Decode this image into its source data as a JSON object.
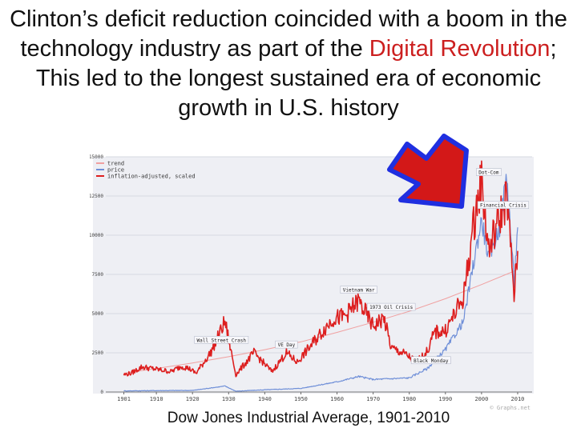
{
  "slide": {
    "title_part1": "Clinton’s deficit reduction coincided with a boom in the technology industry as part of the ",
    "title_highlight": "Digital Revolution",
    "title_part2": "; This led to the longest sustained era of economic growth in U.S. history",
    "caption": "Dow Jones Industrial Average, 1901-2010",
    "accent_color": "#cc1f1f"
  },
  "chart_data": {
    "type": "line",
    "title": "",
    "xlabel": "",
    "ylabel": "",
    "xlim": [
      1896,
      2014
    ],
    "ylim": [
      0,
      15000
    ],
    "x_ticks": [
      "1901",
      "1910",
      "1920",
      "1930",
      "1940",
      "1950",
      "1960",
      "1970",
      "1980",
      "1990",
      "2000",
      "2010"
    ],
    "x_tick_years": [
      1901,
      1910,
      1920,
      1930,
      1940,
      1950,
      1960,
      1970,
      1980,
      1990,
      2000,
      2010
    ],
    "y_ticks": [
      "0",
      "2500",
      "5000",
      "7500",
      "10000",
      "12500",
      "15000"
    ],
    "y_tick_values": [
      0,
      2500,
      5000,
      7500,
      10000,
      12500,
      15000
    ],
    "legend": [
      "trend",
      "price",
      "inflation-adjusted, scaled"
    ],
    "series": [
      {
        "name": "trend",
        "color": "#f0a0a0",
        "x": [
          1901,
          1910,
          1920,
          1930,
          1940,
          1950,
          1960,
          1970,
          1980,
          1990,
          2000,
          2010
        ],
        "values": [
          1200,
          1500,
          1850,
          2250,
          2700,
          3200,
          3800,
          4450,
          5150,
          5950,
          6850,
          7800
        ]
      },
      {
        "name": "price",
        "color": "#6f8fd8",
        "x": [
          1901,
          1910,
          1920,
          1929,
          1932,
          1940,
          1950,
          1960,
          1966,
          1970,
          1975,
          1980,
          1985,
          1987,
          1990,
          1995,
          1998,
          2000,
          2002,
          2005,
          2007,
          2009,
          2010
        ],
        "values": [
          70,
          90,
          100,
          380,
          50,
          140,
          230,
          650,
          990,
          800,
          850,
          900,
          1500,
          2000,
          2700,
          4500,
          8500,
          11000,
          8500,
          10500,
          13900,
          7000,
          10500
        ]
      },
      {
        "name": "inflation-adjusted, scaled",
        "color": "#dd1f1f",
        "x": [
          1901,
          1903,
          1906,
          1910,
          1914,
          1917,
          1919,
          1921,
          1925,
          1929,
          1932,
          1937,
          1942,
          1946,
          1949,
          1955,
          1959,
          1962,
          1966,
          1970,
          1973,
          1975,
          1979,
          1982,
          1985,
          1987,
          1990,
          1995,
          1998,
          2000,
          2002,
          2004,
          2007,
          2009,
          2010
        ],
        "values": [
          1100,
          1200,
          1600,
          1450,
          1300,
          1650,
          1500,
          1200,
          2500,
          4500,
          1100,
          2500,
          1300,
          2500,
          1900,
          3600,
          4700,
          4800,
          5800,
          4200,
          4700,
          2800,
          2400,
          1900,
          2600,
          3800,
          3900,
          6000,
          11000,
          13500,
          9000,
          10500,
          12500,
          6200,
          9000
        ]
      }
    ],
    "annotations": [
      "Dot-Com",
      "Financial Crisis",
      "Vietnam War",
      "1973 Oil Crisis",
      "Wall Street Crash",
      "VE Day",
      "Black Monday"
    ],
    "watermark": "© Graphs.net"
  }
}
